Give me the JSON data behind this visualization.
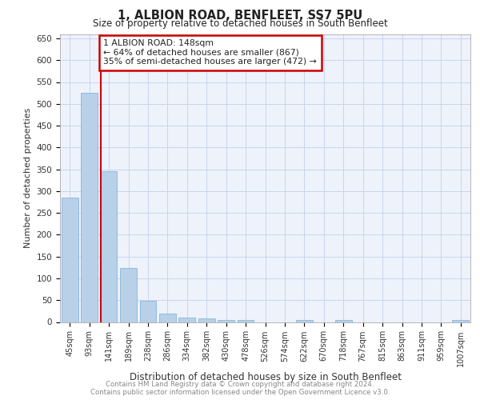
{
  "title": "1, ALBION ROAD, BENFLEET, SS7 5PU",
  "subtitle": "Size of property relative to detached houses in South Benfleet",
  "xlabel": "Distribution of detached houses by size in South Benfleet",
  "ylabel": "Number of detached properties",
  "categories": [
    "45sqm",
    "93sqm",
    "141sqm",
    "189sqm",
    "238sqm",
    "286sqm",
    "334sqm",
    "382sqm",
    "430sqm",
    "478sqm",
    "526sqm",
    "574sqm",
    "622sqm",
    "670sqm",
    "718sqm",
    "767sqm",
    "815sqm",
    "863sqm",
    "911sqm",
    "959sqm",
    "1007sqm"
  ],
  "values": [
    285,
    525,
    345,
    123,
    49,
    19,
    10,
    9,
    5,
    5,
    0,
    0,
    5,
    0,
    5,
    0,
    0,
    0,
    0,
    0,
    5
  ],
  "bar_color": "#b8d0e8",
  "bar_edge_color": "#7aafd4",
  "vline_color": "#cc0000",
  "annotation_box_color": "#cc0000",
  "ylim": [
    0,
    660
  ],
  "yticks": [
    0,
    50,
    100,
    150,
    200,
    250,
    300,
    350,
    400,
    450,
    500,
    550,
    600,
    650
  ],
  "footnote1": "Contains HM Land Registry data © Crown copyright and database right 2024.",
  "footnote2": "Contains public sector information licensed under the Open Government Licence v3.0.",
  "background_color": "#eef2fb",
  "grid_color": "#c8d4ee",
  "property_label": "1 ALBION ROAD: 148sqm",
  "annotation_line1": "← 64% of detached houses are smaller (867)",
  "annotation_line2": "35% of semi-detached houses are larger (472) →"
}
